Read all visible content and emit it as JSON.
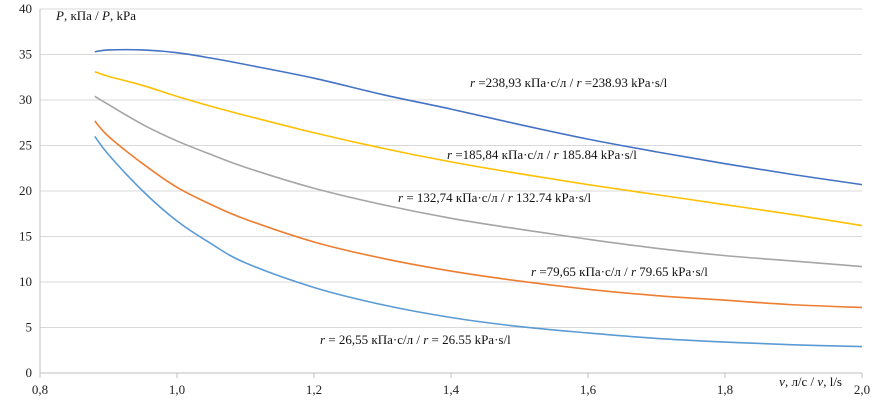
{
  "chart_data": {
    "type": "line",
    "title": "",
    "ylabel": "P, кПа / P, kPa",
    "xlabel": "v, л/с / v, l/s",
    "xlim": [
      0.8,
      2.0
    ],
    "ylim": [
      0,
      40
    ],
    "x_ticks": [
      "0,8",
      "1,0",
      "1,2",
      "1,4",
      "1,6",
      "1,8",
      "2,0"
    ],
    "y_ticks": [
      "0",
      "5",
      "10",
      "15",
      "20",
      "25",
      "30",
      "35",
      "40"
    ],
    "grid": "horizontal",
    "legend": "none",
    "x": [
      0.88,
      0.9,
      0.95,
      1.0,
      1.05,
      1.1,
      1.2,
      1.3,
      1.4,
      1.5,
      1.6,
      1.7,
      1.8,
      1.9,
      2.0
    ],
    "series": [
      {
        "label": "r =238,93  кПа·с/л  / r =238.93  kPa·s/l",
        "color": "#4472c4",
        "values": [
          35.3,
          35.5,
          35.5,
          35.2,
          34.6,
          33.9,
          32.4,
          30.6,
          29.0,
          27.3,
          25.7,
          24.3,
          23.0,
          21.8,
          20.7
        ]
      },
      {
        "label": "r =185,84  кПа·с/л  /  r   185.84  kPa·s/l",
        "color": "#ffc000",
        "values": [
          33.1,
          32.6,
          31.6,
          30.4,
          29.3,
          28.3,
          26.4,
          24.7,
          23.2,
          21.9,
          20.7,
          19.6,
          18.5,
          17.4,
          16.2
        ]
      },
      {
        "label": "r = 132,74  кПа·с/л  /  r   132.74  kPa·s/l",
        "color": "#a5a5a5",
        "values": [
          30.4,
          29.5,
          27.3,
          25.5,
          24.0,
          22.6,
          20.3,
          18.5,
          17.0,
          15.8,
          14.7,
          13.7,
          12.9,
          12.3,
          11.7
        ]
      },
      {
        "label": "r =79,65  кПа·с/л  /   r   79.65  kPa·s/l",
        "color": "#ed7d31",
        "values": [
          27.7,
          26.0,
          23.0,
          20.4,
          18.5,
          16.9,
          14.4,
          12.6,
          11.2,
          10.1,
          9.2,
          8.5,
          8.0,
          7.5,
          7.2
        ]
      },
      {
        "label": "r = 26,55  кПа·с/л  / r  =  26.55  kPa·s/l",
        "color": "#5b9bd5",
        "values": [
          26.0,
          24.0,
          20.0,
          16.7,
          14.2,
          12.1,
          9.4,
          7.5,
          6.1,
          5.1,
          4.4,
          3.8,
          3.4,
          3.1,
          2.9
        ]
      }
    ]
  }
}
